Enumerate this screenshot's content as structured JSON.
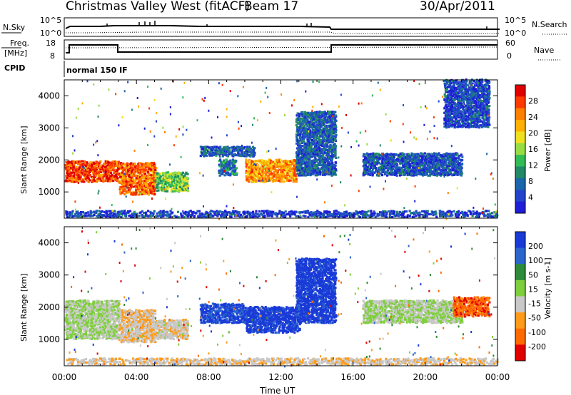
{
  "header": {
    "title": "Christmas Valley West (fitACF)",
    "beam": "Beam 17",
    "date": "30/Apr/2011"
  },
  "top_panels": {
    "nsky_label": "N.Sky",
    "nsky_ticks": [
      "10^5",
      "10^0"
    ],
    "nsearch_label": "N.Search",
    "nsearch_ticks": [
      "10^5",
      "10^0"
    ],
    "freq_label": "Freq.",
    "freq_unit": "[MHz]",
    "freq_ticks": [
      "18",
      "8"
    ],
    "nave_label": "Nave",
    "nave_ticks": [
      "60",
      "0"
    ],
    "cpid_label": "CPID",
    "cpid_text": "normal 150 IF"
  },
  "axes": {
    "ylabel": "Slant Range [km]",
    "yticks": [
      "4000",
      "3000",
      "2000",
      "1000"
    ],
    "xticks": [
      "00:00",
      "04:00",
      "08:00",
      "12:00",
      "16:00",
      "20:00",
      "00:00"
    ],
    "xlabel": "Time UT"
  },
  "chart_data": [
    {
      "type": "heatmap",
      "title": "Power",
      "ylabel": "Slant Range [km]",
      "xlabel": "Time UT",
      "x_range_hours": [
        0,
        24
      ],
      "y_range_km": [
        180,
        4500
      ],
      "colorbar": {
        "label": "Power [dB]",
        "ticks": [
          "28",
          "24",
          "20",
          "16",
          "12",
          "8",
          "4"
        ],
        "colors": [
          "#e00000",
          "#ff3a00",
          "#ff7f00",
          "#ffb000",
          "#f0e020",
          "#99dd44",
          "#33bb55",
          "#228866",
          "#1a66aa",
          "#2244cc",
          "#1e1ed8"
        ],
        "range": [
          0,
          30
        ]
      },
      "regions": [
        {
          "t": [
            0.0,
            3.0
          ],
          "r": [
            1300,
            1950
          ],
          "value": 26
        },
        {
          "t": [
            3.0,
            5.0
          ],
          "r": [
            900,
            1900
          ],
          "value": 24
        },
        {
          "t": [
            5.0,
            6.8
          ],
          "r": [
            1000,
            1600
          ],
          "value": 14
        },
        {
          "t": [
            7.5,
            10.5
          ],
          "r": [
            2100,
            2400
          ],
          "value": 6
        },
        {
          "t": [
            8.5,
            9.5
          ],
          "r": [
            1500,
            2000
          ],
          "value": 8
        },
        {
          "t": [
            10.0,
            12.8
          ],
          "r": [
            1300,
            2000
          ],
          "value": 22
        },
        {
          "t": [
            12.8,
            15.0
          ],
          "r": [
            1500,
            3500
          ],
          "value": 6
        },
        {
          "t": [
            16.5,
            22.0
          ],
          "r": [
            1500,
            2200
          ],
          "value": 5
        },
        {
          "t": [
            21.0,
            23.5
          ],
          "r": [
            3000,
            4500
          ],
          "value": 4
        },
        {
          "t": [
            0.0,
            24.0
          ],
          "r": [
            200,
            400
          ],
          "value": 4
        }
      ]
    },
    {
      "type": "heatmap",
      "title": "Velocity",
      "ylabel": "Slant Range [km]",
      "xlabel": "Time UT",
      "x_range_hours": [
        0,
        24
      ],
      "y_range_km": [
        180,
        4500
      ],
      "colorbar": {
        "label": "Velocity [m s-1]",
        "ticks": [
          "200",
          "100",
          "50",
          "15",
          "-15",
          "-50",
          "-100",
          "-200"
        ],
        "colors": [
          "#1a3ad8",
          "#2a66cc",
          "#2e8b3a",
          "#7ecf3c",
          "#c8c8c8",
          "#ff9a1a",
          "#ff6a00",
          "#e00000"
        ],
        "range": [
          -250,
          250
        ]
      },
      "regions": [
        {
          "t": [
            0.0,
            3.0
          ],
          "r": [
            1000,
            2200
          ],
          "value": 0
        },
        {
          "t": [
            3.0,
            5.0
          ],
          "r": [
            900,
            1900
          ],
          "value": -60
        },
        {
          "t": [
            5.0,
            6.8
          ],
          "r": [
            1000,
            1600
          ],
          "value": -40
        },
        {
          "t": [
            7.5,
            10.0
          ],
          "r": [
            1500,
            2100
          ],
          "value": 200
        },
        {
          "t": [
            10.0,
            13.0
          ],
          "r": [
            1200,
            2000
          ],
          "value": 220
        },
        {
          "t": [
            12.8,
            15.0
          ],
          "r": [
            1500,
            3500
          ],
          "value": 220
        },
        {
          "t": [
            16.5,
            22.0
          ],
          "r": [
            1500,
            2200
          ],
          "value": 0
        },
        {
          "t": [
            21.5,
            23.5
          ],
          "r": [
            1700,
            2300
          ],
          "value": -160
        },
        {
          "t": [
            0.0,
            24.0
          ],
          "r": [
            200,
            400
          ],
          "value": -50
        }
      ]
    }
  ]
}
